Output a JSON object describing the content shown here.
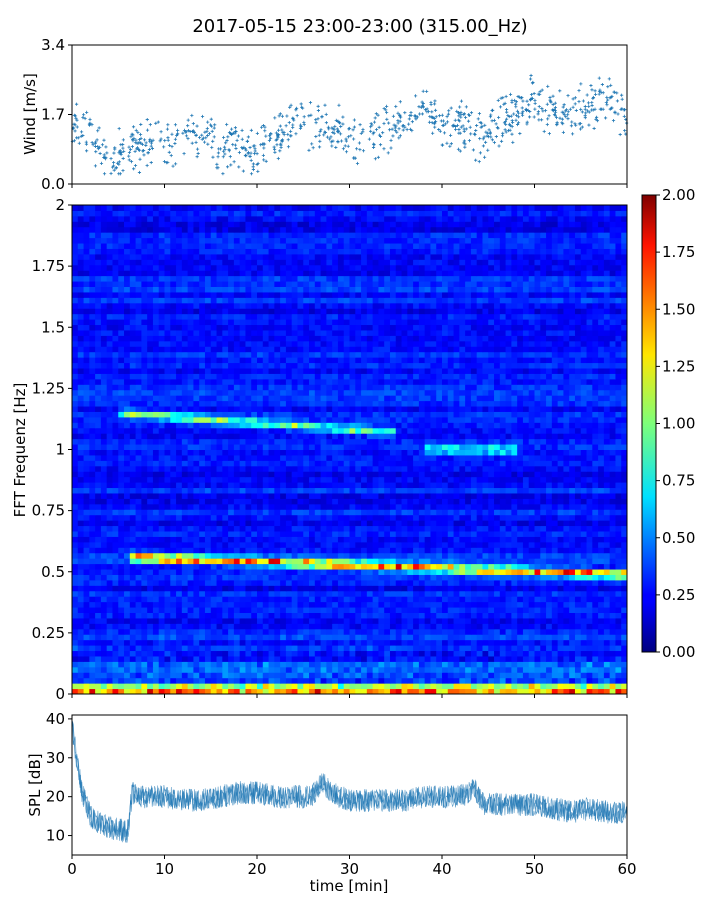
{
  "chart_data": [
    {
      "type": "scatter",
      "title": "2017-05-15 23:00-23:00 (315.00_Hz)",
      "ylabel": "Wind [m/s]",
      "xlim": [
        0,
        60
      ],
      "ylim": [
        0,
        3.4
      ],
      "yticks": [
        "0.0",
        "1.7",
        "3.4"
      ],
      "color": "#1f77b4",
      "series": [
        {
          "x": [
            0,
            2,
            4,
            6,
            8,
            10,
            12,
            14,
            16,
            18,
            20,
            22,
            24,
            26,
            28,
            30,
            32,
            34,
            36,
            38,
            40,
            42,
            44,
            46,
            48,
            50,
            52,
            54,
            56,
            58,
            60
          ],
          "y_mean": [
            1.7,
            1.1,
            0.6,
            0.9,
            0.9,
            1.0,
            1.2,
            1.2,
            0.9,
            0.8,
            0.9,
            1.1,
            1.6,
            1.4,
            1.3,
            1.2,
            1.1,
            1.3,
            1.6,
            1.9,
            1.4,
            1.4,
            1.1,
            1.5,
            1.7,
            2.1,
            1.8,
            1.7,
            1.9,
            2.1,
            1.5
          ],
          "y_spread": 0.7
        }
      ]
    },
    {
      "type": "heatmap",
      "ylabel": "FFT Frequenz [Hz]",
      "xlim": [
        0,
        60
      ],
      "ylim": [
        0,
        2
      ],
      "yticks": [
        "0",
        "0.25",
        "0.5",
        "0.75",
        "1",
        "1.25",
        "1.5",
        "1.75",
        "2"
      ],
      "colorbar": {
        "min": 0,
        "max": 2,
        "ticks": [
          "0.00",
          "0.25",
          "0.50",
          "0.75",
          "1.00",
          "1.25",
          "1.50",
          "1.75",
          "2.00"
        ],
        "colormap": "jet"
      },
      "features": [
        {
          "x": [
            6.5,
            60
          ],
          "f_start": 0.56,
          "f_end": 0.49,
          "intensity": 1.3
        },
        {
          "x": [
            5,
            35
          ],
          "f_start": 1.15,
          "f_end": 1.07,
          "intensity": 0.7
        },
        {
          "x": [
            38,
            48
          ],
          "f_start": 1.0,
          "f_end": 1.0,
          "intensity": 0.6
        },
        {
          "x": [
            0,
            60
          ],
          "f_start": 0.02,
          "f_end": 0.02,
          "intensity": 1.4
        }
      ]
    },
    {
      "type": "line",
      "xlabel": "time [min]",
      "ylabel": "SPL [dB]",
      "xlim": [
        0,
        60
      ],
      "ylim": [
        5,
        41
      ],
      "xticks": [
        "0",
        "10",
        "20",
        "30",
        "40",
        "50",
        "60"
      ],
      "yticks": [
        "10",
        "20",
        "30",
        "40"
      ],
      "color": "#1f77b4",
      "series": [
        {
          "x": [
            0,
            0.5,
            1,
            1.5,
            2,
            3,
            4,
            5,
            6,
            6.5,
            7,
            8,
            10,
            12,
            14,
            16,
            18,
            20,
            22,
            24,
            26,
            27,
            28,
            30,
            32,
            34,
            36,
            38,
            40,
            42,
            43.5,
            44.5,
            46,
            48,
            50,
            52,
            54,
            56,
            58,
            60
          ],
          "y": [
            38,
            30,
            22,
            18,
            15,
            13,
            12,
            11.5,
            11,
            21,
            20,
            20,
            20,
            19,
            19,
            20,
            21,
            21,
            20,
            20,
            20,
            24,
            21,
            19,
            19,
            19,
            19,
            20,
            20,
            20,
            22,
            18,
            18,
            18,
            18,
            17,
            16,
            17,
            16,
            16
          ],
          "spread": 3
        }
      ]
    }
  ]
}
